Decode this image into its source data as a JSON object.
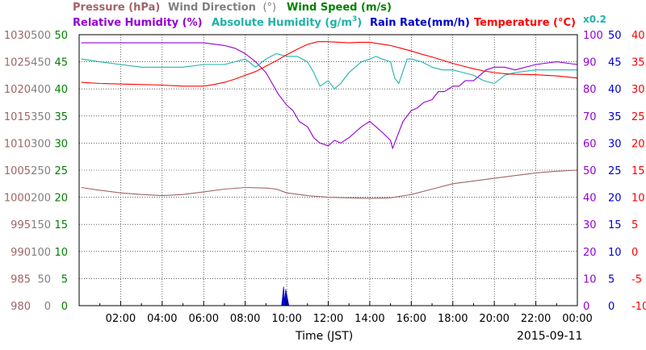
{
  "chart_data": {
    "type": "line",
    "date": "2015-09-11",
    "xlabel": "Time (JST)",
    "x_ticks": [
      "02:00",
      "04:00",
      "06:00",
      "08:00",
      "10:00",
      "12:00",
      "14:00",
      "16:00",
      "18:00",
      "20:00",
      "22:00",
      "00:00"
    ],
    "x_range_hours": [
      0,
      24
    ],
    "legend": {
      "pressure": "Pressure (hPa)",
      "wind_direction": "Wind Direction",
      "wind_direction_unit": "(°)",
      "wind_speed": "Wind Speed (m/s)",
      "relative_humidity": "Relative Humidity (%)",
      "absolute_humidity": "Absolute Humidity (g/m",
      "absolute_humidity_sup": "3",
      "absolute_humidity_close": ")",
      "rain_rate": "Rain Rate(mm/h)",
      "temperature": "Temperature (°C)",
      "scale_note": "x0.2"
    },
    "axes": [
      {
        "id": "pressure",
        "color": "#a06464",
        "side": "left",
        "ticks": [
          "1030",
          "1025",
          "1020",
          "1015",
          "1010",
          "1005",
          "1000",
          "995",
          "990",
          "985",
          "980"
        ]
      },
      {
        "id": "wind_direction",
        "color": "#808080",
        "side": "left",
        "ticks": [
          "500",
          "450",
          "400",
          "350",
          "300",
          "250",
          "200",
          "150",
          "100",
          "50",
          "0"
        ]
      },
      {
        "id": "wind_speed",
        "color": "#008000",
        "side": "left",
        "ticks": [
          "50",
          "45",
          "40",
          "35",
          "30",
          "25",
          "20",
          "15",
          "10",
          "5",
          "0"
        ]
      },
      {
        "id": "humidity",
        "color": "#9400d3",
        "side": "right",
        "ticks": [
          "100",
          "90",
          "80",
          "70",
          "60",
          "50",
          "40",
          "30",
          "20",
          "10",
          "0"
        ]
      },
      {
        "id": "rain_rate",
        "color": "#0000cd",
        "side": "right",
        "ticks": [
          "50",
          "45",
          "40",
          "35",
          "30",
          "25",
          "20",
          "15",
          "10",
          "5",
          "0"
        ]
      },
      {
        "id": "temperature",
        "color": "#ff0000",
        "side": "right",
        "ticks": [
          "40",
          "35",
          "30",
          "25",
          "20",
          "15",
          "10",
          "5",
          "0",
          "-5",
          "-10"
        ]
      }
    ],
    "series": [
      {
        "name": "Pressure (hPa)",
        "axis": "pressure",
        "color": "#a06464",
        "ylim": [
          980,
          1030
        ],
        "x": [
          0.1,
          1,
          2,
          3,
          4,
          5,
          6,
          7,
          8,
          9,
          9.5,
          10,
          11,
          12,
          13,
          14,
          15,
          16,
          17,
          18,
          19,
          20,
          21,
          22,
          23,
          24
        ],
        "y": [
          1001.8,
          1001.3,
          1000.8,
          1000.5,
          1000.3,
          1000.5,
          1001.0,
          1001.5,
          1001.8,
          1001.7,
          1001.5,
          1000.8,
          1000.3,
          1000.0,
          999.9,
          999.8,
          999.9,
          1000.5,
          1001.5,
          1002.5,
          1003.0,
          1003.5,
          1004.0,
          1004.5,
          1004.8,
          1005.0
        ]
      },
      {
        "name": "Relative Humidity (%)",
        "axis": "humidity",
        "color": "#9400d3",
        "ylim": [
          0,
          100
        ],
        "x": [
          0.1,
          1,
          2,
          3,
          4,
          5,
          6,
          7,
          7.5,
          8,
          8.5,
          9,
          9.3,
          9.6,
          10,
          10.3,
          10.6,
          11,
          11.3,
          11.6,
          12,
          12.3,
          12.6,
          13,
          13.3,
          13.6,
          14,
          14.3,
          14.6,
          15,
          15.1,
          15.3,
          15.6,
          16,
          16.3,
          16.6,
          17,
          17.3,
          17.6,
          18,
          18.3,
          18.6,
          19,
          19.3,
          19.6,
          20,
          20.5,
          21,
          22,
          23,
          24
        ],
        "y": [
          97,
          97,
          97,
          97,
          97,
          97,
          97,
          96,
          95,
          93,
          90,
          86,
          82,
          78,
          74,
          72,
          68,
          66,
          62,
          60,
          59,
          61,
          60,
          62,
          64,
          66,
          68,
          66,
          64,
          61,
          58,
          62,
          68,
          72,
          73,
          75,
          76,
          79,
          79,
          81,
          81,
          83,
          83,
          85,
          87,
          88,
          88,
          87,
          89,
          90,
          89
        ]
      },
      {
        "name": "Absolute Humidity (g/m3)",
        "axis": "humidity",
        "color": "#20b2aa",
        "ylim": [
          0,
          100
        ],
        "x": [
          0.1,
          1,
          2,
          3,
          4,
          5,
          6,
          7,
          7.5,
          8,
          8.5,
          9,
          9.5,
          10,
          10.5,
          11,
          11.3,
          11.6,
          12,
          12.3,
          12.6,
          13,
          13.3,
          13.6,
          14,
          14.3,
          14.6,
          15,
          15.2,
          15.4,
          15.8,
          16,
          16.5,
          17,
          17.5,
          18,
          18.5,
          19,
          19.5,
          20,
          20.5,
          21,
          22,
          23,
          24
        ],
        "y": [
          91,
          90,
          89,
          88,
          88,
          88,
          89,
          89,
          90,
          91,
          88,
          91,
          93,
          92,
          92,
          90,
          86,
          81,
          83,
          80,
          82,
          86,
          88,
          90,
          91,
          92,
          91,
          90,
          84,
          82,
          91,
          91,
          90,
          88,
          87,
          87,
          86,
          85,
          83,
          82,
          85,
          86,
          87,
          87,
          87
        ]
      },
      {
        "name": "Temperature (°C)",
        "axis": "temperature",
        "color": "#ff0000",
        "ylim": [
          -10,
          40
        ],
        "x": [
          0.1,
          1,
          2,
          3,
          4,
          5,
          6,
          6.5,
          7,
          7.5,
          8,
          8.5,
          9,
          9.5,
          10,
          10.5,
          11,
          11.5,
          12,
          12.5,
          13,
          13.5,
          14,
          14.5,
          15,
          15.5,
          16,
          16.5,
          17,
          17.5,
          18,
          18.5,
          19,
          19.5,
          20,
          20.5,
          21,
          22,
          23,
          24
        ],
        "y": [
          31.2,
          31.0,
          30.9,
          30.8,
          30.7,
          30.5,
          30.5,
          30.8,
          31.2,
          31.8,
          32.5,
          33.2,
          34.2,
          35.2,
          36.3,
          37.3,
          38.2,
          38.7,
          38.7,
          38.6,
          38.5,
          38.6,
          38.6,
          38.3,
          38.0,
          37.5,
          37.0,
          36.4,
          35.9,
          35.3,
          34.7,
          34.2,
          33.7,
          33.3,
          33.0,
          32.8,
          32.7,
          32.6,
          32.4,
          32.0
        ]
      },
      {
        "name": "Rain Rate(mm/h)",
        "axis": "rain_rate",
        "color": "#0000cd",
        "ylim": [
          0,
          50
        ],
        "x": [
          9.5,
          9.75,
          9.8,
          9.85,
          9.9,
          9.95,
          10.05,
          10.1
        ],
        "y": [
          0,
          0,
          1.5,
          3.5,
          0.5,
          3.0,
          1.0,
          0
        ]
      }
    ]
  }
}
